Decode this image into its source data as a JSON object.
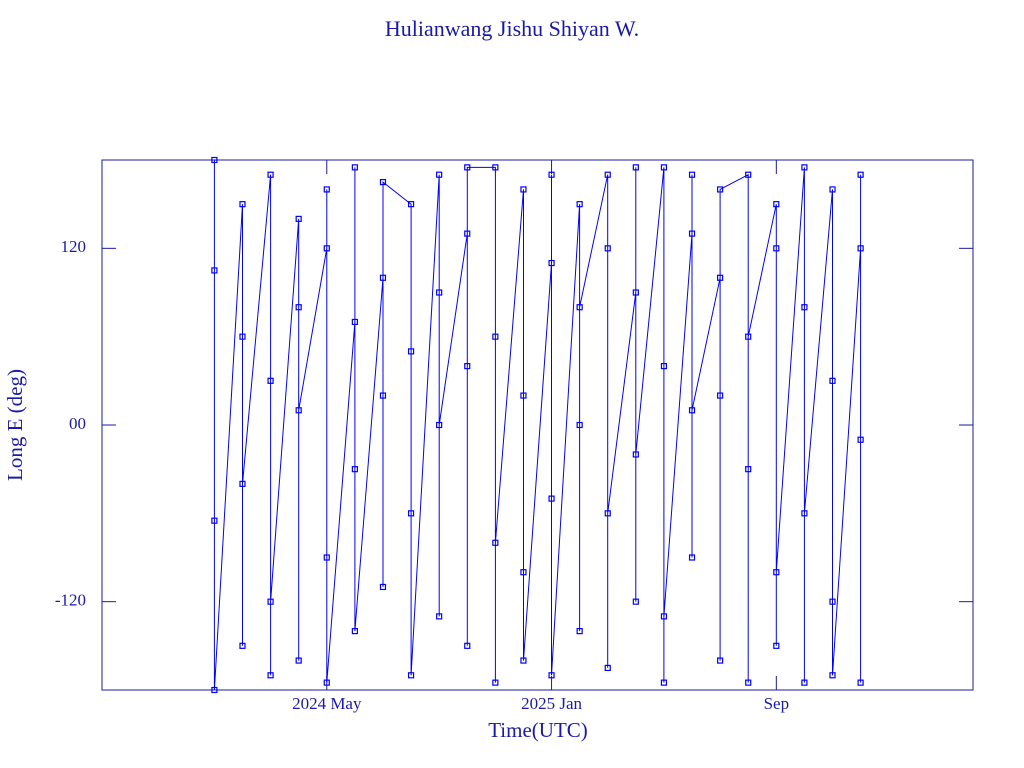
{
  "chart_data": {
    "type": "line",
    "title": "Hulianwang Jishu Shiyan W.",
    "x_label": "Time(UTC)",
    "y_label": "Long E (deg)",
    "color": "#0000ff",
    "xlim": [
      "2023-09",
      "2026-04"
    ],
    "xticks": [
      {
        "value": "2024-05",
        "label": "2024 May"
      },
      {
        "value": "2025-01",
        "label": "2025 Jan"
      },
      {
        "value": "2025-09",
        "label": "Sep"
      }
    ],
    "ylim": [
      -180,
      180
    ],
    "yticks": [
      -120,
      {
        "value": 0,
        "label": "00"
      },
      120
    ],
    "x": [
      "2024-01",
      "2024-01",
      "2024-01",
      "2024-01",
      "2024-02",
      "2024-02",
      "2024-02",
      "2024-02",
      "2024-03",
      "2024-03",
      "2024-03",
      "2024-03",
      "2024-04",
      "2024-04",
      "2024-04",
      "2024-04",
      "2024-05",
      "2024-05",
      "2024-05",
      "2024-05",
      "2024-06",
      "2024-06",
      "2024-06",
      "2024-06",
      "2024-07",
      "2024-07",
      "2024-07",
      "2024-07",
      "2024-08",
      "2024-08",
      "2024-08",
      "2024-08",
      "2024-09",
      "2024-09",
      "2024-09",
      "2024-09",
      "2024-10",
      "2024-10",
      "2024-10",
      "2024-10",
      "2024-11",
      "2024-11",
      "2024-11",
      "2024-11",
      "2024-12",
      "2024-12",
      "2024-12",
      "2024-12",
      "2025-01",
      "2025-01",
      "2025-01",
      "2025-01",
      "2025-02",
      "2025-02",
      "2025-02",
      "2025-02",
      "2025-03",
      "2025-03",
      "2025-03",
      "2025-03",
      "2025-04",
      "2025-04",
      "2025-04",
      "2025-04",
      "2025-05",
      "2025-05",
      "2025-05",
      "2025-05",
      "2025-06",
      "2025-06",
      "2025-06",
      "2025-06",
      "2025-07",
      "2025-07",
      "2025-07",
      "2025-07",
      "2025-08",
      "2025-08",
      "2025-08",
      "2025-08",
      "2025-09",
      "2025-09",
      "2025-09",
      "2025-09",
      "2025-10",
      "2025-10",
      "2025-10",
      "2025-10",
      "2025-11",
      "2025-11",
      "2025-11",
      "2025-11",
      "2025-12",
      "2025-12",
      "2025-12",
      "2025-12"
    ],
    "values": [
      105,
      -65,
      180,
      -180,
      150,
      -150,
      60,
      -40,
      170,
      -170,
      30,
      -120,
      140,
      -160,
      80,
      10,
      120,
      -90,
      160,
      -175,
      70,
      -30,
      175,
      -140,
      100,
      20,
      -110,
      165,
      150,
      -60,
      50,
      -170,
      170,
      -130,
      90,
      0,
      130,
      40,
      -150,
      175,
      175,
      -175,
      60,
      -80,
      160,
      -100,
      20,
      -160,
      110,
      -50,
      170,
      -170,
      150,
      0,
      -140,
      80,
      170,
      -165,
      120,
      -60,
      90,
      -120,
      175,
      -20,
      175,
      -175,
      40,
      -130,
      130,
      -90,
      170,
      10,
      100,
      20,
      -160,
      160,
      170,
      -30,
      -175,
      60,
      150,
      -150,
      120,
      -100,
      175,
      -175,
      80,
      -60,
      160,
      -120,
      30,
      -170,
      120,
      -10,
      170,
      -175
    ]
  }
}
